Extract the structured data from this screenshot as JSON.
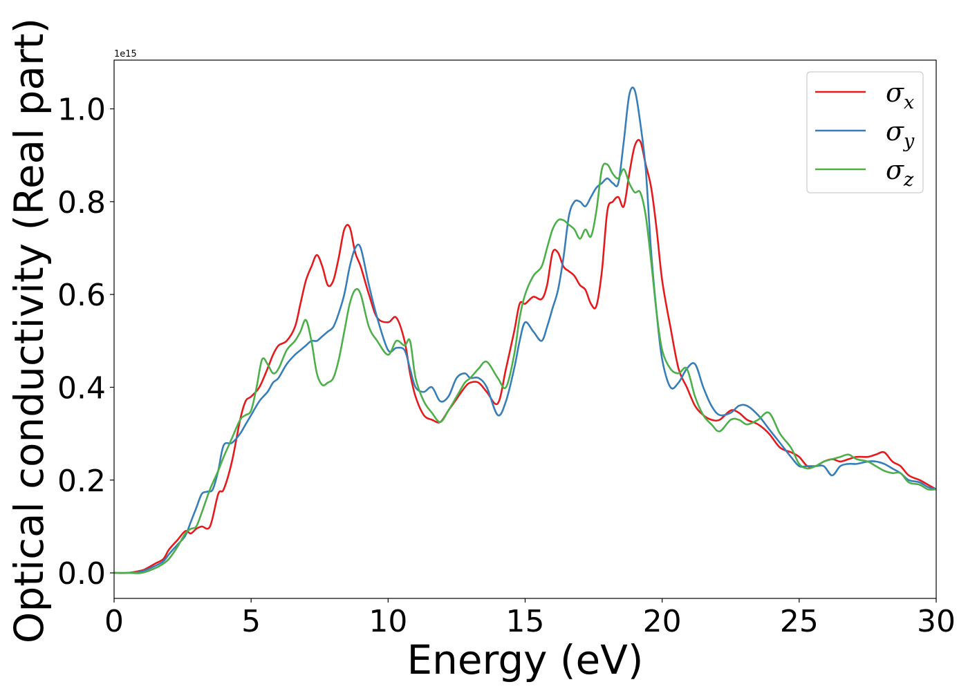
{
  "chart_data": {
    "type": "line",
    "xlabel": "Energy (eV)",
    "ylabel": "Optical conductivity (Real part)",
    "offset_text": "1e15",
    "xlim": [
      0,
      30
    ],
    "ylim": [
      -0.055,
      1.105
    ],
    "xticks": [
      "0",
      "5",
      "10",
      "15",
      "20",
      "25",
      "30"
    ],
    "yticks": [
      "0.0",
      "0.2",
      "0.4",
      "0.6",
      "0.8",
      "1.0"
    ],
    "legend_position": "top-right",
    "grid": false,
    "series": [
      {
        "name": "σx",
        "base": "σ",
        "sub": "x",
        "color": "#e41a1c",
        "x": [
          0,
          0.5,
          1,
          1.2,
          1.5,
          1.8,
          2,
          2.3,
          2.6,
          2.8,
          3,
          3.2,
          3.5,
          3.8,
          4,
          4.3,
          4.6,
          4.8,
          5,
          5.3,
          5.6,
          5.8,
          6,
          6.3,
          6.6,
          6.8,
          7,
          7.2,
          7.4,
          7.6,
          7.8,
          8,
          8.2,
          8.4,
          8.6,
          8.8,
          9,
          9.3,
          9.6,
          10,
          10.3,
          10.6,
          10.8,
          11,
          11.3,
          11.6,
          11.9,
          12.2,
          12.5,
          12.8,
          13,
          13.3,
          13.6,
          14,
          14.3,
          14.6,
          14.8,
          15,
          15.3,
          15.6,
          15.8,
          16,
          16.2,
          16.4,
          16.6,
          16.8,
          17,
          17.2,
          17.4,
          17.6,
          17.8,
          18,
          18.2,
          18.4,
          18.6,
          18.8,
          19,
          19.2,
          19.4,
          19.6,
          19.8,
          20,
          20.3,
          20.6,
          20.9,
          21.2,
          21.5,
          21.8,
          22.1,
          22.5,
          22.8,
          23.1,
          23.5,
          23.9,
          24.3,
          24.7,
          25,
          25.3,
          25.6,
          25.9,
          26.2,
          26.5,
          26.8,
          27.1,
          27.5,
          27.8,
          28.1,
          28.4,
          28.7,
          29,
          29.4,
          29.7,
          30
        ],
        "y": [
          0,
          0,
          0.005,
          0.01,
          0.02,
          0.03,
          0.05,
          0.07,
          0.09,
          0.085,
          0.095,
          0.1,
          0.1,
          0.17,
          0.18,
          0.24,
          0.33,
          0.37,
          0.38,
          0.4,
          0.44,
          0.47,
          0.49,
          0.5,
          0.53,
          0.58,
          0.63,
          0.66,
          0.685,
          0.66,
          0.62,
          0.63,
          0.68,
          0.74,
          0.745,
          0.69,
          0.66,
          0.6,
          0.55,
          0.54,
          0.55,
          0.5,
          0.43,
          0.38,
          0.34,
          0.33,
          0.325,
          0.35,
          0.375,
          0.4,
          0.41,
          0.41,
          0.39,
          0.365,
          0.44,
          0.52,
          0.58,
          0.58,
          0.595,
          0.59,
          0.62,
          0.69,
          0.69,
          0.66,
          0.65,
          0.64,
          0.62,
          0.61,
          0.58,
          0.575,
          0.65,
          0.78,
          0.8,
          0.81,
          0.79,
          0.86,
          0.92,
          0.93,
          0.88,
          0.83,
          0.74,
          0.63,
          0.53,
          0.44,
          0.4,
          0.36,
          0.34,
          0.33,
          0.33,
          0.35,
          0.345,
          0.33,
          0.32,
          0.3,
          0.27,
          0.26,
          0.25,
          0.23,
          0.23,
          0.24,
          0.245,
          0.24,
          0.245,
          0.25,
          0.25,
          0.255,
          0.26,
          0.24,
          0.23,
          0.21,
          0.2,
          0.19,
          0.18
        ]
      },
      {
        "name": "σy",
        "base": "σ",
        "sub": "y",
        "color": "#377eb8",
        "x": [
          0,
          0.5,
          1,
          1.5,
          1.8,
          2,
          2.3,
          2.6,
          2.8,
          3,
          3.2,
          3.4,
          3.6,
          3.8,
          4,
          4.3,
          4.6,
          4.8,
          5,
          5.3,
          5.6,
          5.8,
          6,
          6.3,
          6.6,
          6.8,
          7,
          7.2,
          7.4,
          7.6,
          7.8,
          8,
          8.2,
          8.4,
          8.6,
          8.8,
          9,
          9.3,
          9.6,
          10,
          10.3,
          10.6,
          10.8,
          11,
          11.3,
          11.6,
          11.9,
          12.2,
          12.5,
          12.8,
          13,
          13.3,
          13.6,
          14,
          14.3,
          14.6,
          14.8,
          15,
          15.3,
          15.6,
          15.8,
          16,
          16.2,
          16.4,
          16.6,
          16.8,
          17,
          17.2,
          17.4,
          17.6,
          17.8,
          18,
          18.2,
          18.4,
          18.6,
          18.8,
          19,
          19.2,
          19.4,
          19.6,
          19.8,
          20,
          20.3,
          20.6,
          20.9,
          21.2,
          21.5,
          21.8,
          22.1,
          22.5,
          22.8,
          23.1,
          23.5,
          23.9,
          24.3,
          24.7,
          25,
          25.3,
          25.6,
          25.9,
          26.2,
          26.5,
          26.8,
          27.1,
          27.5,
          27.8,
          28.1,
          28.4,
          28.7,
          29,
          29.4,
          29.7,
          30
        ],
        "y": [
          0,
          0,
          0.003,
          0.015,
          0.025,
          0.04,
          0.06,
          0.08,
          0.11,
          0.14,
          0.17,
          0.175,
          0.18,
          0.22,
          0.275,
          0.28,
          0.3,
          0.32,
          0.34,
          0.37,
          0.39,
          0.41,
          0.42,
          0.45,
          0.47,
          0.48,
          0.49,
          0.5,
          0.5,
          0.51,
          0.52,
          0.53,
          0.56,
          0.6,
          0.66,
          0.7,
          0.7,
          0.62,
          0.55,
          0.48,
          0.485,
          0.48,
          0.44,
          0.4,
          0.39,
          0.4,
          0.37,
          0.38,
          0.42,
          0.43,
          0.42,
          0.42,
          0.4,
          0.34,
          0.37,
          0.44,
          0.5,
          0.54,
          0.52,
          0.5,
          0.53,
          0.57,
          0.61,
          0.68,
          0.77,
          0.8,
          0.8,
          0.79,
          0.81,
          0.83,
          0.84,
          0.85,
          0.84,
          0.84,
          0.93,
          1.03,
          1.04,
          0.97,
          0.87,
          0.69,
          0.56,
          0.46,
          0.4,
          0.41,
          0.44,
          0.45,
          0.4,
          0.36,
          0.34,
          0.345,
          0.36,
          0.36,
          0.34,
          0.31,
          0.28,
          0.25,
          0.23,
          0.23,
          0.23,
          0.23,
          0.21,
          0.23,
          0.235,
          0.235,
          0.24,
          0.24,
          0.235,
          0.225,
          0.215,
          0.2,
          0.195,
          0.185,
          0.18
        ]
      },
      {
        "name": "σz",
        "base": "σ",
        "sub": "z",
        "color": "#4daf4a",
        "x": [
          0,
          0.5,
          1,
          1.5,
          1.8,
          2,
          2.3,
          2.6,
          2.8,
          3,
          3.2,
          3.5,
          3.8,
          4,
          4.3,
          4.6,
          4.8,
          5,
          5.2,
          5.4,
          5.6,
          5.8,
          6,
          6.3,
          6.6,
          6.8,
          7,
          7.2,
          7.4,
          7.6,
          7.8,
          8,
          8.2,
          8.4,
          8.6,
          8.8,
          9,
          9.3,
          9.6,
          10,
          10.3,
          10.6,
          10.8,
          11,
          11.3,
          11.6,
          11.9,
          12.2,
          12.5,
          12.8,
          13,
          13.3,
          13.6,
          14,
          14.3,
          14.6,
          14.8,
          15,
          15.3,
          15.6,
          15.8,
          16,
          16.2,
          16.4,
          16.6,
          16.8,
          17,
          17.2,
          17.4,
          17.6,
          17.8,
          18,
          18.2,
          18.4,
          18.6,
          18.8,
          19,
          19.2,
          19.4,
          19.6,
          19.8,
          20,
          20.3,
          20.6,
          20.9,
          21.2,
          21.5,
          21.8,
          22.1,
          22.5,
          22.8,
          23.1,
          23.5,
          23.9,
          24.3,
          24.7,
          25,
          25.3,
          25.6,
          25.9,
          26.2,
          26.5,
          26.8,
          27.1,
          27.5,
          27.8,
          28.1,
          28.4,
          28.7,
          29,
          29.4,
          29.7,
          30
        ],
        "y": [
          0,
          0,
          0,
          0.01,
          0.02,
          0.03,
          0.055,
          0.085,
          0.095,
          0.1,
          0.13,
          0.18,
          0.22,
          0.25,
          0.29,
          0.33,
          0.34,
          0.35,
          0.4,
          0.46,
          0.45,
          0.43,
          0.44,
          0.48,
          0.5,
          0.52,
          0.545,
          0.5,
          0.43,
          0.405,
          0.41,
          0.42,
          0.46,
          0.52,
          0.58,
          0.61,
          0.6,
          0.53,
          0.5,
          0.47,
          0.5,
          0.49,
          0.5,
          0.42,
          0.37,
          0.345,
          0.325,
          0.35,
          0.38,
          0.41,
          0.42,
          0.44,
          0.455,
          0.42,
          0.4,
          0.47,
          0.55,
          0.6,
          0.64,
          0.66,
          0.7,
          0.74,
          0.76,
          0.76,
          0.75,
          0.74,
          0.72,
          0.74,
          0.725,
          0.78,
          0.87,
          0.88,
          0.86,
          0.85,
          0.87,
          0.84,
          0.82,
          0.82,
          0.77,
          0.67,
          0.56,
          0.48,
          0.44,
          0.43,
          0.44,
          0.38,
          0.34,
          0.32,
          0.305,
          0.33,
          0.33,
          0.32,
          0.33,
          0.345,
          0.3,
          0.27,
          0.235,
          0.225,
          0.23,
          0.24,
          0.245,
          0.25,
          0.255,
          0.245,
          0.24,
          0.23,
          0.22,
          0.215,
          0.215,
          0.195,
          0.19,
          0.18,
          0.18
        ]
      }
    ]
  }
}
